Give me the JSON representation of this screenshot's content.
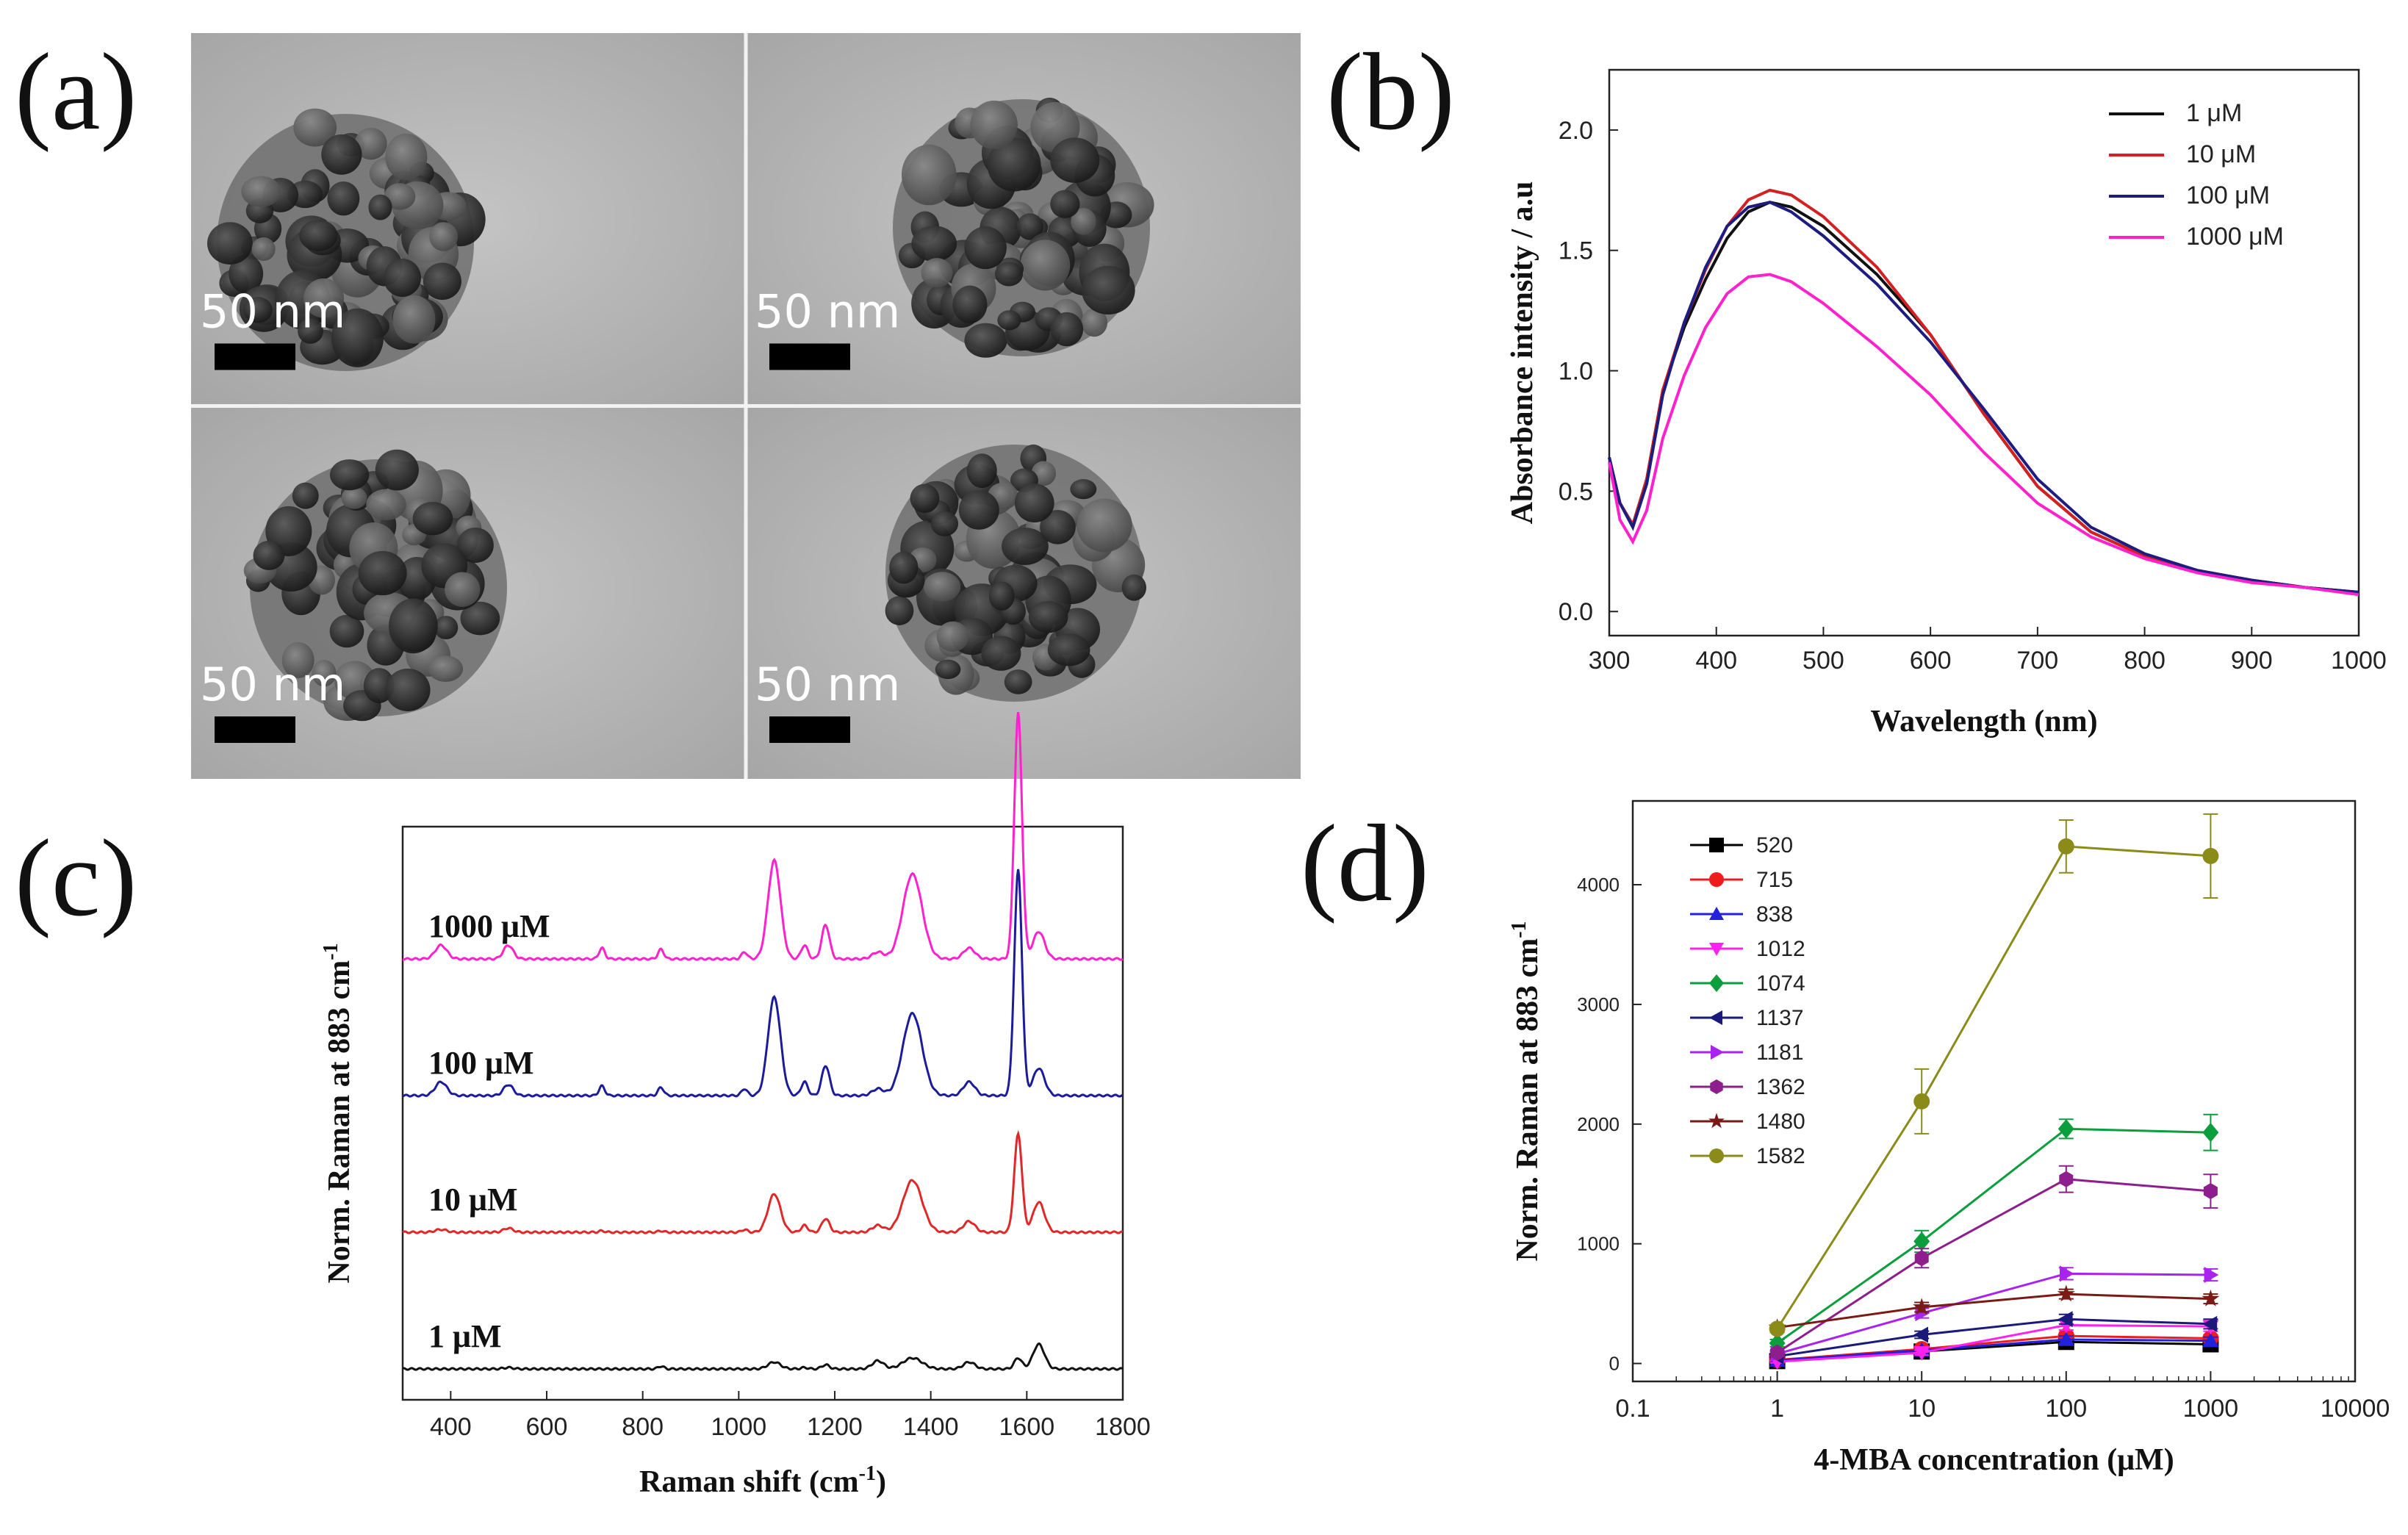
{
  "panel_labels": {
    "a": "(a)",
    "b": "(b)",
    "c": "(c)",
    "d": "(d)"
  },
  "tem": {
    "scale_bar_label": "50 nm"
  },
  "chart_data": [
    {
      "id": "b",
      "type": "line",
      "xlabel": "Wavelength (nm)",
      "ylabel": "Absorbance intensity / a.u",
      "xlim": [
        300,
        1000
      ],
      "ylim": [
        -0.1,
        2.25
      ],
      "xticks": [
        "300",
        "400",
        "500",
        "600",
        "700",
        "800",
        "900",
        "1000"
      ],
      "yticks": [
        "0.0",
        "0.5",
        "1.0",
        "1.5",
        "2.0"
      ],
      "legend_position": "top-right",
      "series": [
        {
          "name": "1 μM",
          "color": "#111111",
          "points": [
            [
              300,
              0.64
            ],
            [
              310,
              0.45
            ],
            [
              322,
              0.36
            ],
            [
              335,
              0.55
            ],
            [
              350,
              0.92
            ],
            [
              370,
              1.18
            ],
            [
              390,
              1.38
            ],
            [
              410,
              1.55
            ],
            [
              430,
              1.66
            ],
            [
              450,
              1.7
            ],
            [
              470,
              1.68
            ],
            [
              500,
              1.6
            ],
            [
              550,
              1.4
            ],
            [
              600,
              1.15
            ],
            [
              650,
              0.82
            ],
            [
              700,
              0.52
            ],
            [
              750,
              0.33
            ],
            [
              800,
              0.23
            ],
            [
              850,
              0.17
            ],
            [
              900,
              0.13
            ],
            [
              950,
              0.1
            ],
            [
              1000,
              0.08
            ]
          ]
        },
        {
          "name": "10 μM",
          "color": "#d42020",
          "points": [
            [
              300,
              0.64
            ],
            [
              310,
              0.45
            ],
            [
              322,
              0.36
            ],
            [
              335,
              0.55
            ],
            [
              350,
              0.92
            ],
            [
              370,
              1.2
            ],
            [
              390,
              1.42
            ],
            [
              410,
              1.6
            ],
            [
              430,
              1.71
            ],
            [
              450,
              1.75
            ],
            [
              470,
              1.73
            ],
            [
              500,
              1.64
            ],
            [
              550,
              1.43
            ],
            [
              600,
              1.15
            ],
            [
              650,
              0.82
            ],
            [
              700,
              0.52
            ],
            [
              750,
              0.33
            ],
            [
              800,
              0.23
            ],
            [
              850,
              0.17
            ],
            [
              900,
              0.13
            ],
            [
              950,
              0.1
            ],
            [
              1000,
              0.08
            ]
          ]
        },
        {
          "name": "100 μM",
          "color": "#1c1c82",
          "points": [
            [
              300,
              0.64
            ],
            [
              310,
              0.45
            ],
            [
              322,
              0.35
            ],
            [
              335,
              0.53
            ],
            [
              350,
              0.9
            ],
            [
              370,
              1.2
            ],
            [
              390,
              1.43
            ],
            [
              410,
              1.6
            ],
            [
              430,
              1.68
            ],
            [
              450,
              1.7
            ],
            [
              470,
              1.66
            ],
            [
              500,
              1.56
            ],
            [
              550,
              1.36
            ],
            [
              600,
              1.12
            ],
            [
              650,
              0.84
            ],
            [
              700,
              0.55
            ],
            [
              750,
              0.35
            ],
            [
              800,
              0.24
            ],
            [
              850,
              0.17
            ],
            [
              900,
              0.13
            ],
            [
              950,
              0.1
            ],
            [
              1000,
              0.08
            ]
          ]
        },
        {
          "name": "1000 μM",
          "color": "#ff22cc",
          "points": [
            [
              300,
              0.62
            ],
            [
              310,
              0.38
            ],
            [
              322,
              0.29
            ],
            [
              335,
              0.42
            ],
            [
              350,
              0.72
            ],
            [
              370,
              0.98
            ],
            [
              390,
              1.18
            ],
            [
              410,
              1.32
            ],
            [
              430,
              1.39
            ],
            [
              450,
              1.4
            ],
            [
              470,
              1.37
            ],
            [
              500,
              1.28
            ],
            [
              550,
              1.1
            ],
            [
              600,
              0.9
            ],
            [
              650,
              0.66
            ],
            [
              700,
              0.45
            ],
            [
              750,
              0.31
            ],
            [
              800,
              0.22
            ],
            [
              850,
              0.16
            ],
            [
              900,
              0.12
            ],
            [
              950,
              0.1
            ],
            [
              1000,
              0.07
            ]
          ]
        }
      ]
    },
    {
      "id": "c",
      "type": "line",
      "xlabel": "Raman shift (cm-1)",
      "ylabel": "Norm. Raman at 883 cm-1",
      "xlim": [
        300,
        1800
      ],
      "xticks": [
        "400",
        "600",
        "800",
        "1000",
        "1200",
        "1400",
        "1600",
        "1800"
      ],
      "peaks_cm": [
        380,
        520,
        715,
        838,
        1012,
        1074,
        1137,
        1181,
        1290,
        1362,
        1480,
        1582,
        1625
      ],
      "series": [
        {
          "name": "1000 μM",
          "label": "1000 μM",
          "color": "#ff22cc",
          "baseline": 3.0,
          "peak_heights": [
            0.1,
            0.1,
            0.08,
            0.07,
            0.05,
            0.72,
            0.1,
            0.25,
            0.05,
            0.62,
            0.08,
            1.8,
            0.2
          ]
        },
        {
          "name": "100 μM",
          "label": "100 μM",
          "color": "#1c1c9a",
          "baseline": 2.0,
          "peak_heights": [
            0.1,
            0.08,
            0.07,
            0.06,
            0.05,
            0.72,
            0.1,
            0.22,
            0.05,
            0.6,
            0.1,
            1.65,
            0.2
          ]
        },
        {
          "name": "10 μM",
          "label": "10 μM",
          "color": "#e02828",
          "baseline": 1.0,
          "peak_heights": [
            0.02,
            0.03,
            0.01,
            0.01,
            0.02,
            0.28,
            0.05,
            0.1,
            0.05,
            0.38,
            0.08,
            0.72,
            0.22
          ]
        },
        {
          "name": "1 μM",
          "label": "1 μM",
          "color": "#111111",
          "baseline": 0.0,
          "peak_heights": [
            0.0,
            0.01,
            0.0,
            0.02,
            0.0,
            0.05,
            0.01,
            0.03,
            0.06,
            0.08,
            0.05,
            0.08,
            0.18
          ]
        }
      ]
    },
    {
      "id": "d",
      "type": "line",
      "xlabel": "4-MBA concentration (μM)",
      "ylabel": "Norm. Raman at 883 cm-1",
      "xscale": "log",
      "xlim": [
        0.1,
        10000
      ],
      "ylim": [
        -150,
        4700
      ],
      "xticks": [
        "0.1",
        "1",
        "10",
        "100",
        "1000",
        "10000"
      ],
      "yticks": [
        "0",
        "1000",
        "2000",
        "3000",
        "4000"
      ],
      "legend_position": "top-left",
      "x": [
        1,
        10,
        100,
        1000
      ],
      "series": [
        {
          "name": "520",
          "color": "#000000",
          "marker": "square",
          "values": [
            20,
            100,
            180,
            160
          ],
          "err": [
            10,
            20,
            30,
            30
          ]
        },
        {
          "name": "715",
          "color": "#ee1c1c",
          "marker": "circle",
          "values": [
            30,
            120,
            230,
            210
          ],
          "err": [
            10,
            20,
            30,
            30
          ]
        },
        {
          "name": "838",
          "color": "#2222dd",
          "marker": "triangle",
          "values": [
            25,
            110,
            200,
            190
          ],
          "err": [
            10,
            20,
            30,
            30
          ]
        },
        {
          "name": "1012",
          "color": "#ff22ee",
          "marker": "tri-down",
          "values": [
            15,
            90,
            320,
            310
          ],
          "err": [
            10,
            20,
            40,
            40
          ]
        },
        {
          "name": "1074",
          "color": "#0a9e3c",
          "marker": "diamond",
          "values": [
            170,
            1020,
            1960,
            1930
          ],
          "err": [
            30,
            90,
            80,
            150
          ]
        },
        {
          "name": "1137",
          "color": "#1a1a7a",
          "marker": "tri-left",
          "values": [
            60,
            240,
            370,
            330
          ],
          "err": [
            10,
            30,
            40,
            40
          ]
        },
        {
          "name": "1181",
          "color": "#aa22ee",
          "marker": "tri-right",
          "values": [
            80,
            420,
            750,
            740
          ],
          "err": [
            20,
            40,
            50,
            50
          ]
        },
        {
          "name": "1362",
          "color": "#8e1e8e",
          "marker": "hexagon",
          "values": [
            90,
            880,
            1540,
            1440
          ],
          "err": [
            20,
            80,
            110,
            140
          ]
        },
        {
          "name": "1480",
          "color": "#7a1a14",
          "marker": "star",
          "values": [
            300,
            470,
            580,
            540
          ],
          "err": [
            20,
            40,
            40,
            40
          ]
        },
        {
          "name": "1582",
          "color": "#8b8b1a",
          "marker": "circle",
          "values": [
            290,
            2190,
            4320,
            4240
          ],
          "err": [
            30,
            270,
            220,
            350
          ]
        }
      ]
    }
  ]
}
